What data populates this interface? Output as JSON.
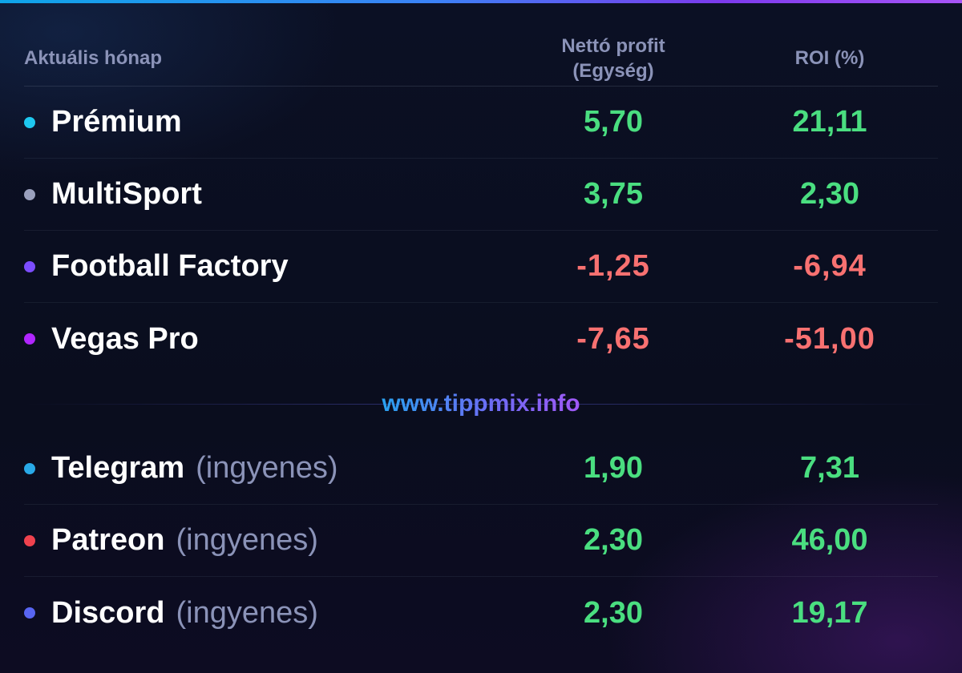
{
  "colors": {
    "positive": "#4ade80",
    "negative": "#f87171",
    "muted": "#8b93b8"
  },
  "header": {
    "period": "Aktuális hónap",
    "profit_col_line1": "Nettó profit",
    "profit_col_line2": "(Egység)",
    "roi_col": "ROI (%)"
  },
  "premium_rows": [
    {
      "name": "Prémium",
      "dot_color": "#1ec8f0",
      "profit": "5,70",
      "roi": "21,11",
      "profit_sign": "pos",
      "roi_sign": "pos"
    },
    {
      "name": "MultiSport",
      "dot_color": "#9aa0bd",
      "profit": "3,75",
      "roi": "2,30",
      "profit_sign": "pos",
      "roi_sign": "pos"
    },
    {
      "name": "Football Factory",
      "dot_color": "#7c4dff",
      "profit": "-1,25",
      "roi": "-6,94",
      "profit_sign": "neg",
      "roi_sign": "neg"
    },
    {
      "name": "Vegas Pro",
      "dot_color": "#b026ff",
      "profit": "-7,65",
      "roi": "-51,00",
      "profit_sign": "neg",
      "roi_sign": "neg"
    }
  ],
  "watermark": "www.tippmix.info",
  "free_rows": [
    {
      "name": "Telegram",
      "suffix": "(ingyenes)",
      "dot_color": "#29a9e8",
      "profit": "1,90",
      "roi": "7,31",
      "profit_sign": "pos",
      "roi_sign": "pos"
    },
    {
      "name": "Patreon",
      "suffix": "(ingyenes)",
      "dot_color": "#f0424e",
      "profit": "2,30",
      "roi": "46,00",
      "profit_sign": "pos",
      "roi_sign": "pos"
    },
    {
      "name": "Discord",
      "suffix": "(ingyenes)",
      "dot_color": "#5865f2",
      "profit": "2,30",
      "roi": "19,17",
      "profit_sign": "pos",
      "roi_sign": "pos"
    }
  ]
}
